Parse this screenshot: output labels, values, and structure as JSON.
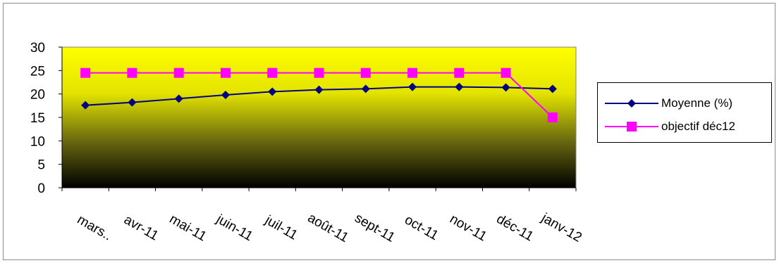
{
  "chart_data": {
    "type": "line",
    "title": "",
    "xlabel": "",
    "ylabel": "",
    "categories": [
      "mars..",
      "avr-11",
      "mai-11",
      "juin-11",
      "juil-11",
      "août-11",
      "sept-11",
      "oct-11",
      "nov-11",
      "déc-11",
      "janv-12"
    ],
    "ylim": [
      0,
      30
    ],
    "yticks": [
      0,
      5,
      10,
      15,
      20,
      25,
      30
    ],
    "grid": false,
    "legend_position": "right",
    "plot_background": "gradient yellow to black",
    "series": [
      {
        "name": "Moyenne (%)",
        "color": "#000080",
        "marker": "diamond",
        "values": [
          17.6,
          18.2,
          19.0,
          19.8,
          20.5,
          20.9,
          21.1,
          21.5,
          21.5,
          21.4,
          21.1
        ]
      },
      {
        "name": "objectif déc12",
        "color": "#ff00ff",
        "marker": "square",
        "values": [
          24.5,
          24.5,
          24.5,
          24.5,
          24.5,
          24.5,
          24.5,
          24.5,
          24.5,
          24.5,
          15.0
        ]
      }
    ]
  }
}
